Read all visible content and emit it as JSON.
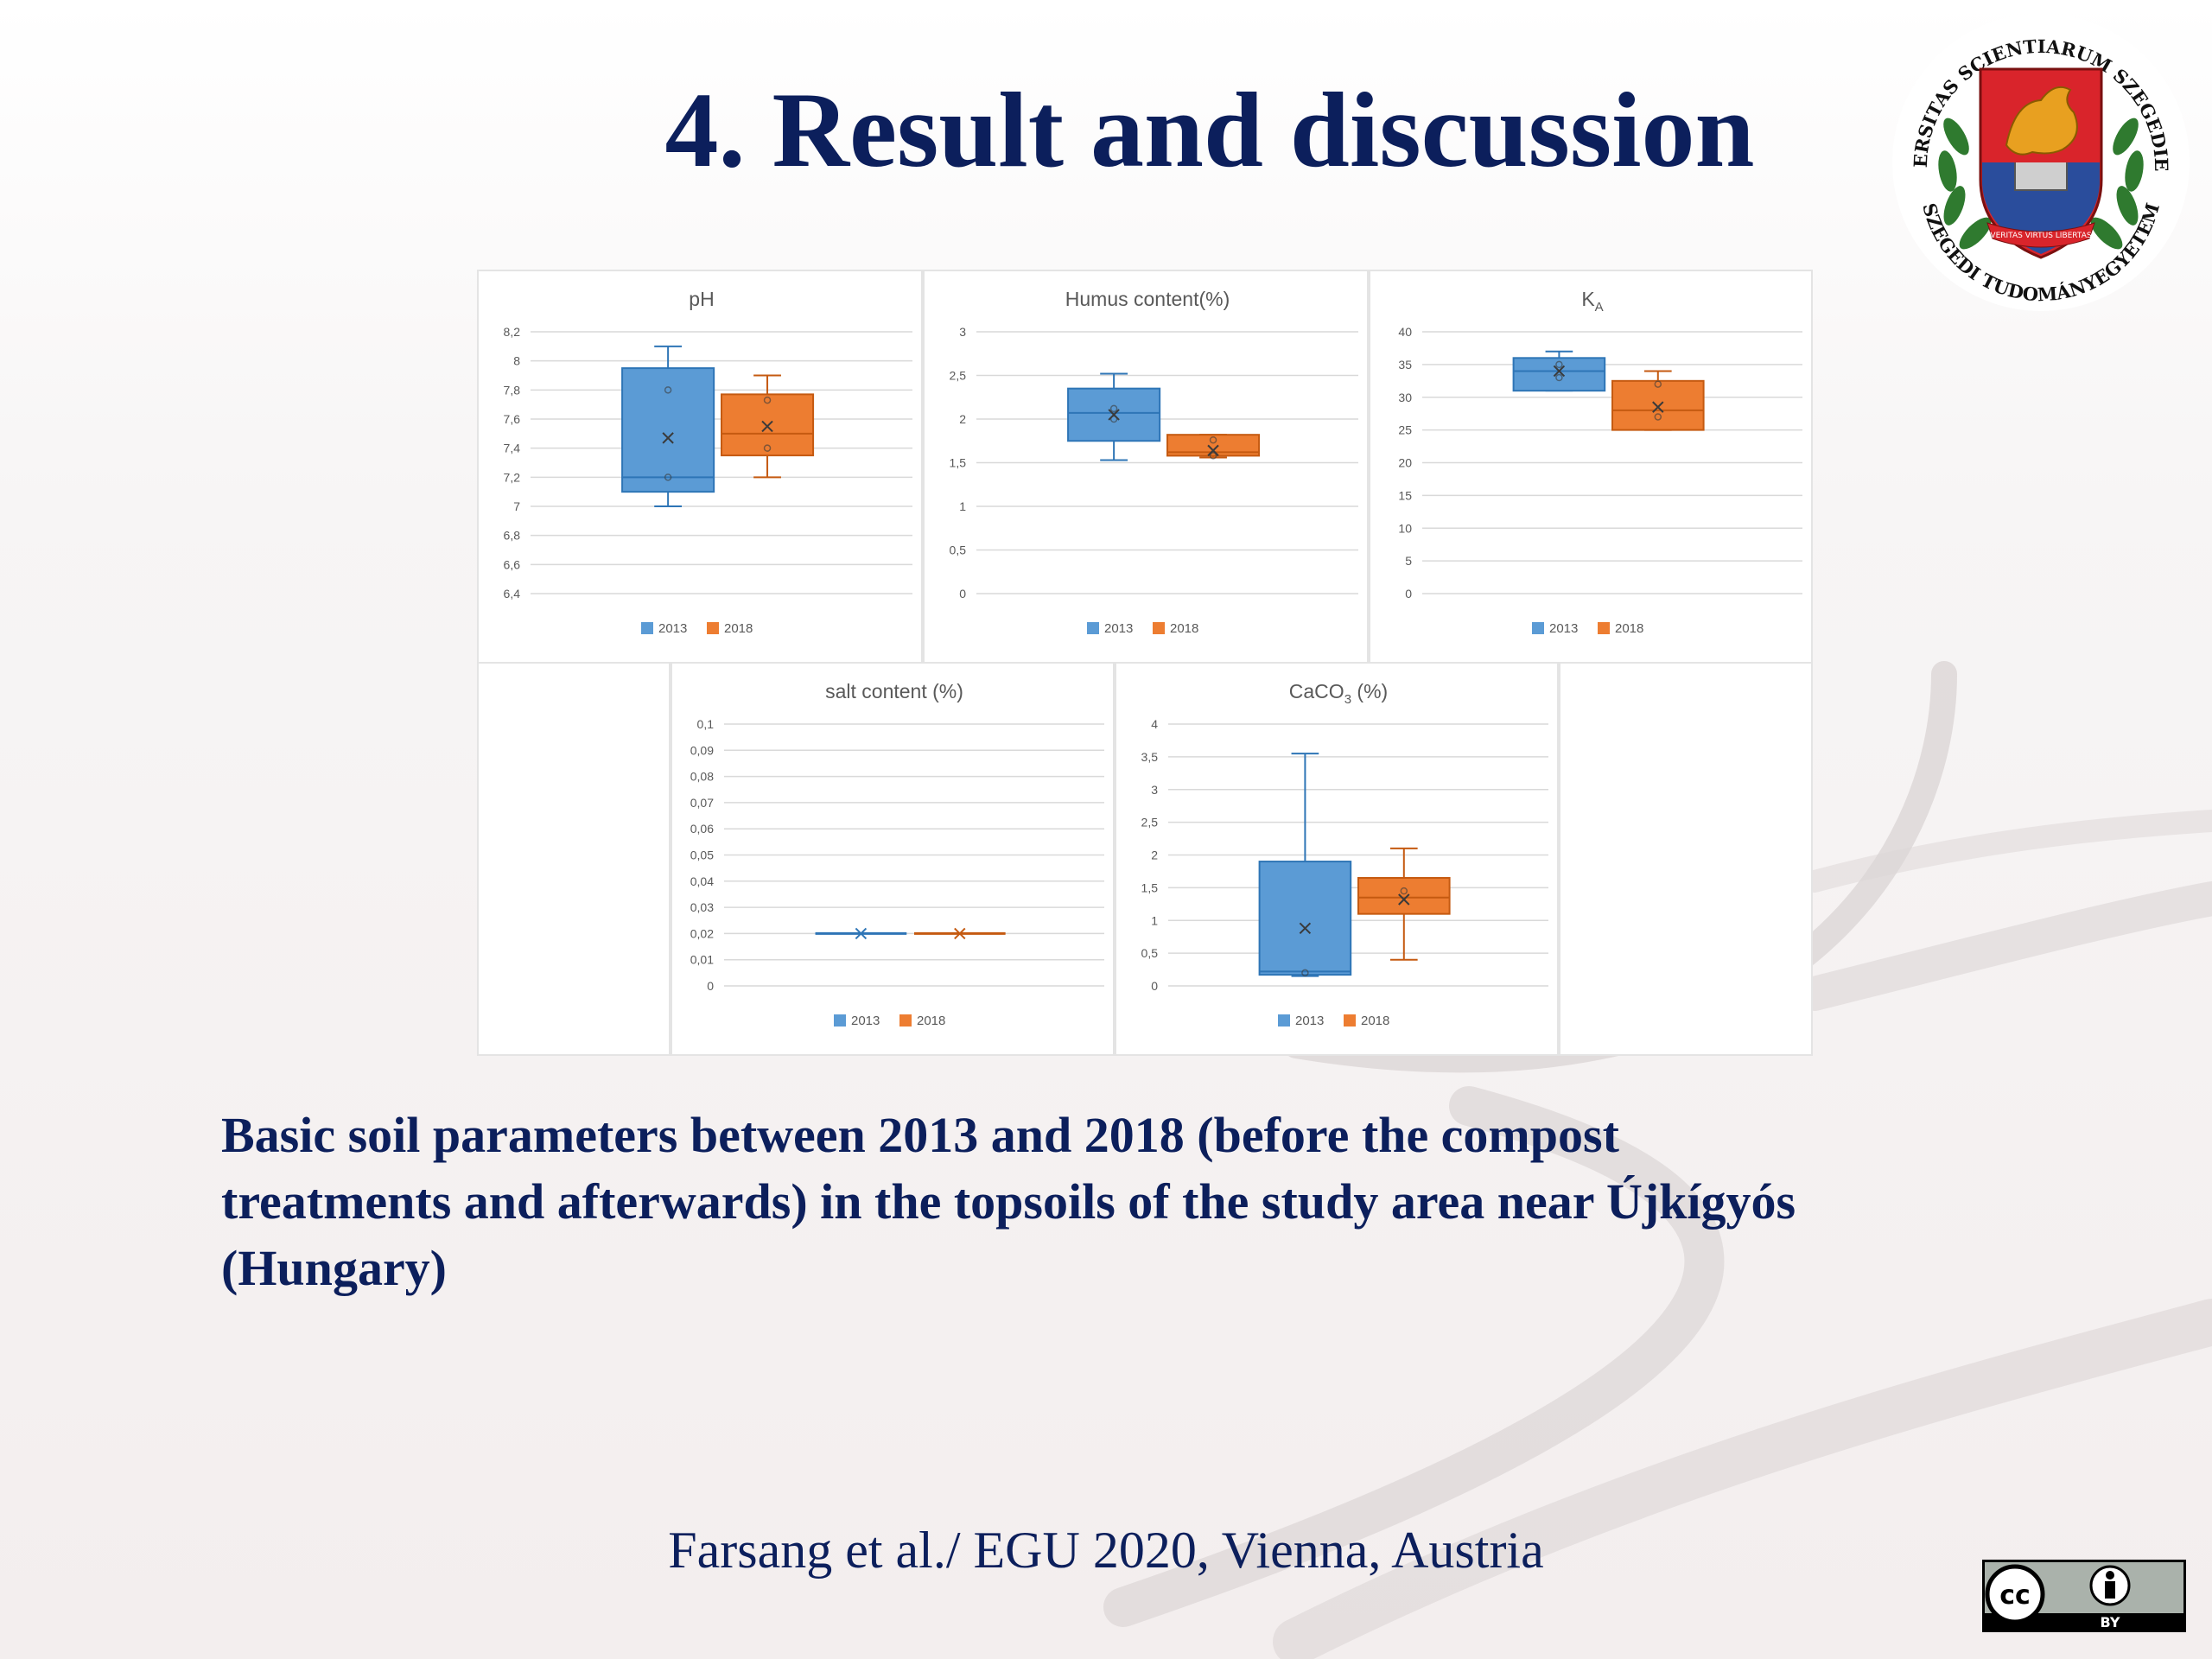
{
  "slide": {
    "title": "4. Result and discussion",
    "caption_lines": [
      "Basic soil parameters between 2013 and 2018 (before the compost",
      "treatments and afterwards) in the topsoils of the study area near Újkígyós",
      "(Hungary)"
    ],
    "citation": "Farsang et al./ EGU 2020, Vienna, Austria"
  },
  "seal": {
    "ring_text_top": "UNIVERSITAS SCIENTIARUM SZEGEDIENSIS",
    "ring_text_bottom": "SZEGEDI TUDOMÁNYEGYETEM",
    "motto": "VERITAS VIRTUS LIBERTAS",
    "colors": {
      "ring": "#ffffff",
      "shield": "#d9242b",
      "griffin": "#e8a020",
      "laurel": "#2f7a2f",
      "text": "#111111",
      "blue": "#2a4d9c"
    }
  },
  "license": {
    "cc_label": "cc",
    "by_label": "BY"
  },
  "colors": {
    "title": "#0c1f5c",
    "series_2013": "#5b9bd5",
    "series_2013_stroke": "#2e75b6",
    "series_2018": "#ed7d31",
    "series_2018_stroke": "#c55a11",
    "grid": "#d9d9d9"
  },
  "chart_data": [
    {
      "type": "box",
      "title": "pH",
      "title_sub": "",
      "ylim": [
        6.4,
        8.2
      ],
      "yticks": [
        "8,2",
        "8",
        "7,8",
        "7,6",
        "7,4",
        "7,2",
        "7",
        "6,8",
        "6,6",
        "6,4"
      ],
      "ytick_values": [
        8.2,
        8,
        7.8,
        7.6,
        7.4,
        7.2,
        7,
        6.8,
        6.6,
        6.4
      ],
      "grid": true,
      "legend_position": "bottom",
      "series": [
        {
          "name": "2013",
          "min": 7.0,
          "q1": 7.1,
          "median": 7.2,
          "q3": 7.95,
          "max": 8.1,
          "mean": 7.47,
          "points": [
            7.2,
            7.8
          ]
        },
        {
          "name": "2018",
          "min": 7.2,
          "q1": 7.35,
          "median": 7.5,
          "q3": 7.77,
          "max": 7.9,
          "mean": 7.55,
          "points": [
            7.4,
            7.73
          ]
        }
      ]
    },
    {
      "type": "box",
      "title": "Humus content(%)",
      "title_sub": "",
      "ylim": [
        0,
        3
      ],
      "yticks": [
        "3",
        "2,5",
        "2",
        "1,5",
        "1",
        "0,5",
        "0"
      ],
      "ytick_values": [
        3,
        2.5,
        2,
        1.5,
        1,
        0.5,
        0
      ],
      "grid": true,
      "legend_position": "bottom",
      "series": [
        {
          "name": "2013",
          "min": 1.53,
          "q1": 1.75,
          "median": 2.07,
          "q3": 2.35,
          "max": 2.52,
          "mean": 2.05,
          "points": [
            2.0,
            2.12
          ]
        },
        {
          "name": "2018",
          "min": 1.56,
          "q1": 1.58,
          "median": 1.62,
          "q3": 1.82,
          "max": 1.82,
          "mean": 1.64,
          "points": [
            1.58,
            1.76
          ]
        }
      ]
    },
    {
      "type": "box",
      "title": "K",
      "title_sub": "A",
      "ylim": [
        0,
        40
      ],
      "yticks": [
        "40",
        "35",
        "30",
        "25",
        "20",
        "15",
        "10",
        "5",
        "0"
      ],
      "ytick_values": [
        40,
        35,
        30,
        25,
        20,
        15,
        10,
        5,
        0
      ],
      "grid": true,
      "legend_position": "bottom",
      "series": [
        {
          "name": "2013",
          "min": 31,
          "q1": 31,
          "median": 34,
          "q3": 36,
          "max": 37,
          "mean": 34,
          "points": [
            33,
            35
          ]
        },
        {
          "name": "2018",
          "min": 25,
          "q1": 25,
          "median": 28,
          "q3": 32.5,
          "max": 34,
          "mean": 28.5,
          "points": [
            27,
            32
          ]
        }
      ]
    },
    {
      "type": "box",
      "title": "salt content (%)",
      "title_sub": "",
      "ylim": [
        0,
        0.1
      ],
      "yticks": [
        "0,1",
        "0,09",
        "0,08",
        "0,07",
        "0,06",
        "0,05",
        "0,04",
        "0,03",
        "0,02",
        "0,01",
        "0"
      ],
      "ytick_values": [
        0.1,
        0.09,
        0.08,
        0.07,
        0.06,
        0.05,
        0.04,
        0.03,
        0.02,
        0.01,
        0
      ],
      "grid": true,
      "legend_position": "bottom",
      "series": [
        {
          "name": "2013",
          "min": 0.02,
          "q1": 0.02,
          "median": 0.02,
          "q3": 0.02,
          "max": 0.02,
          "mean": 0.02,
          "points": []
        },
        {
          "name": "2018",
          "min": 0.02,
          "q1": 0.02,
          "median": 0.02,
          "q3": 0.02,
          "max": 0.02,
          "mean": 0.02,
          "points": []
        }
      ]
    },
    {
      "type": "box",
      "title": "CaCO",
      "title_sub": "3",
      "title_suffix": " (%)",
      "ylim": [
        0,
        4
      ],
      "yticks": [
        "4",
        "3,5",
        "3",
        "2,5",
        "2",
        "1,5",
        "1",
        "0,5",
        "0"
      ],
      "ytick_values": [
        4,
        3.5,
        3,
        2.5,
        2,
        1.5,
        1,
        0.5,
        0
      ],
      "grid": true,
      "legend_position": "bottom",
      "series": [
        {
          "name": "2013",
          "min": 0.15,
          "q1": 0.17,
          "median": 0.22,
          "q3": 1.9,
          "max": 3.55,
          "mean": 0.88,
          "points": [
            0.2
          ]
        },
        {
          "name": "2018",
          "min": 0.4,
          "q1": 1.1,
          "median": 1.35,
          "q3": 1.65,
          "max": 2.1,
          "mean": 1.32,
          "points": [
            1.45
          ]
        }
      ]
    }
  ]
}
